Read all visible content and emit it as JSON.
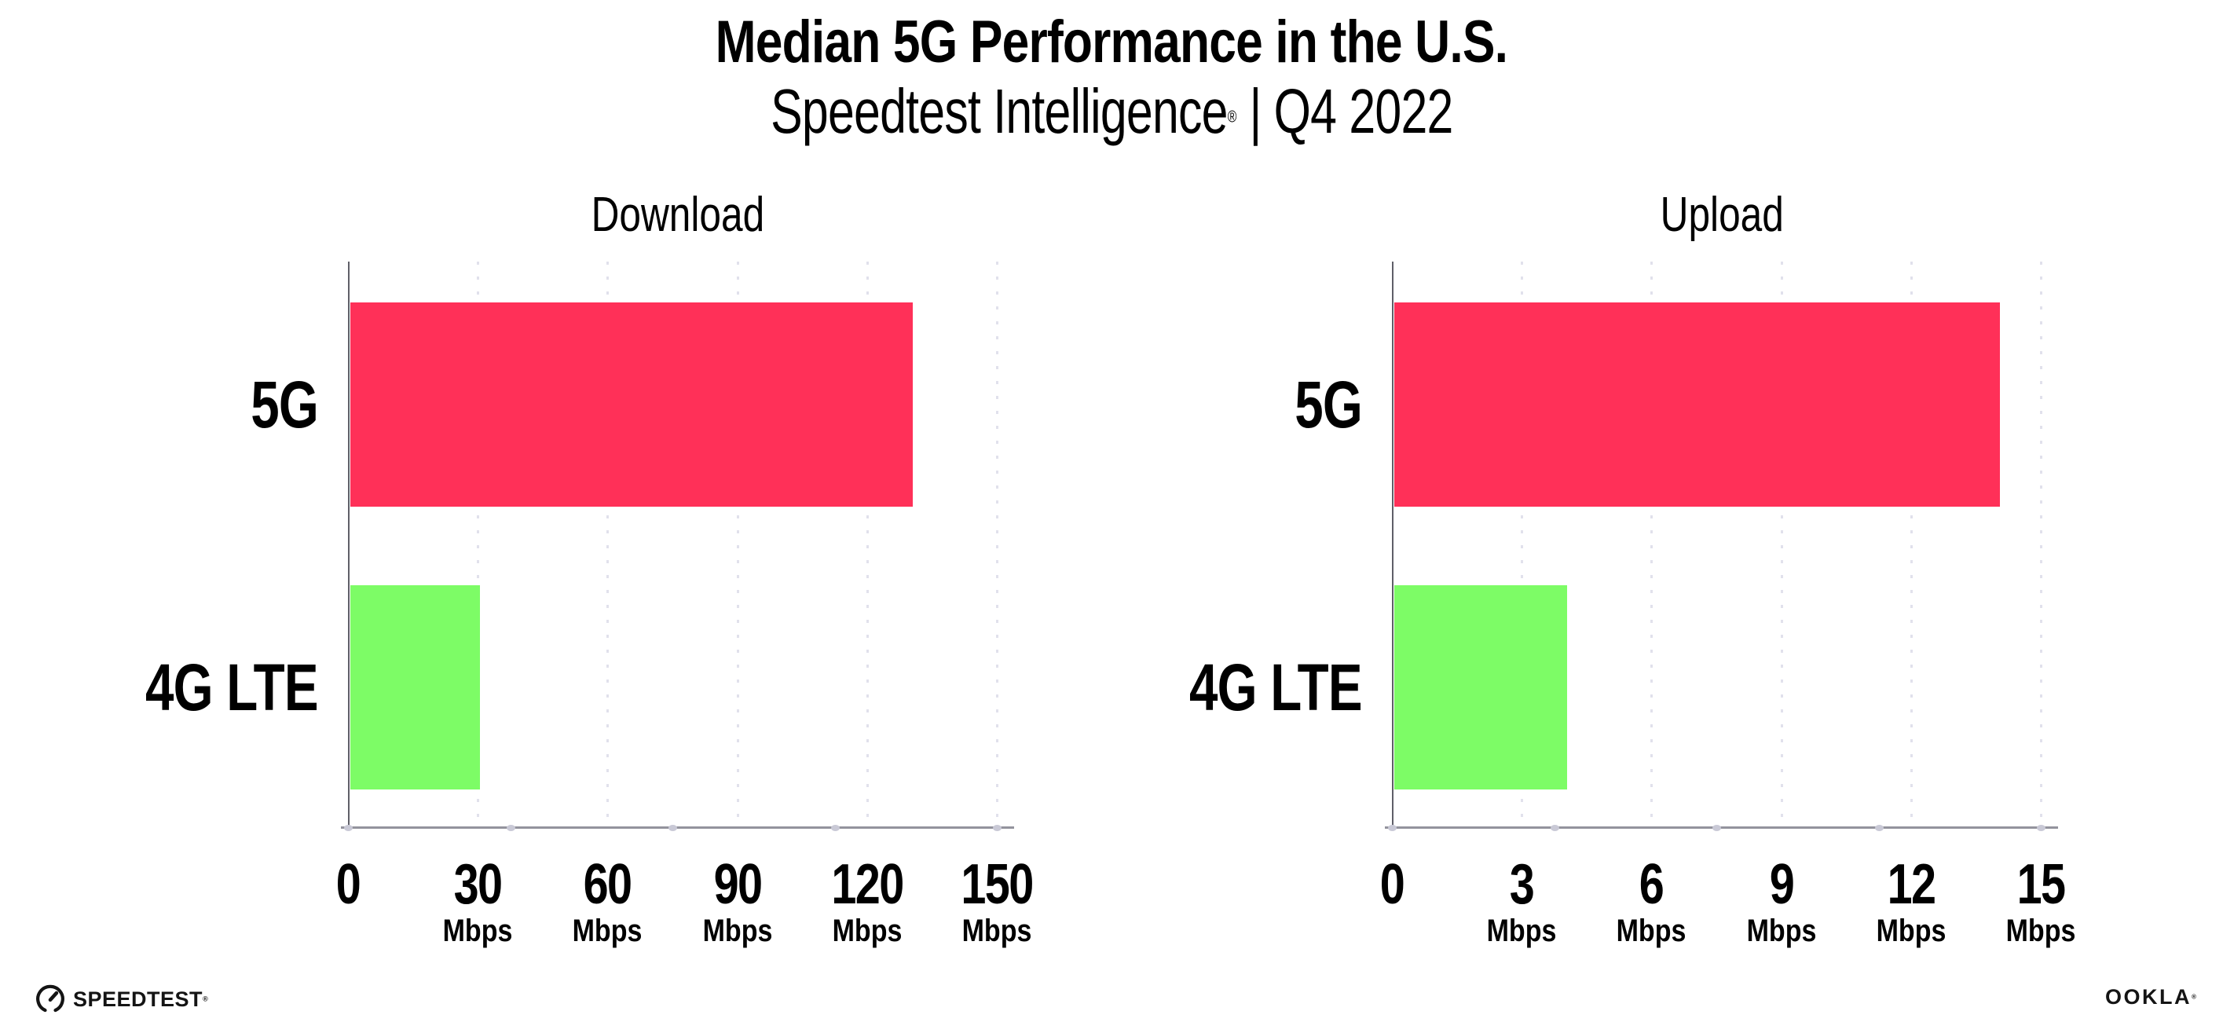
{
  "header": {
    "title": "Median 5G Performance in the U.S.",
    "subtitle_brand": "Speedtest Intelligence",
    "subtitle_reg": "®",
    "subtitle_rest": " | Q4 2022"
  },
  "colors": {
    "bar_5g": "#ff3058",
    "bar_4g_lte": "#7dfc66",
    "bar_colors": [
      "#ff3058",
      "#7dfc66"
    ],
    "gridline": "#e1e1ec",
    "axis": "#93939d",
    "text": "#000000"
  },
  "chart_data": [
    {
      "type": "bar",
      "orientation": "horizontal",
      "title": "Download",
      "categories": [
        "5G",
        "4G LTE"
      ],
      "values": [
        130,
        30
      ],
      "unit": "Mbps",
      "xlabel": "",
      "ylabel": "",
      "xlim": [
        0,
        150
      ],
      "xticks": [
        0,
        30,
        60,
        90,
        120,
        150
      ],
      "grid": "vertical-dotted",
      "legend": "none"
    },
    {
      "type": "bar",
      "orientation": "horizontal",
      "title": "Upload",
      "categories": [
        "5G",
        "4G LTE"
      ],
      "values": [
        14,
        4
      ],
      "unit": "Mbps",
      "xlabel": "",
      "ylabel": "",
      "xlim": [
        0,
        15
      ],
      "xticks": [
        0,
        3,
        6,
        9,
        12,
        15
      ],
      "grid": "vertical-dotted",
      "legend": "none"
    }
  ],
  "footer": {
    "speedtest_logo_text": "SPEEDTEST",
    "speedtest_reg": "®",
    "ookla_logo_text": "OOKLA",
    "ookla_reg": "®"
  }
}
